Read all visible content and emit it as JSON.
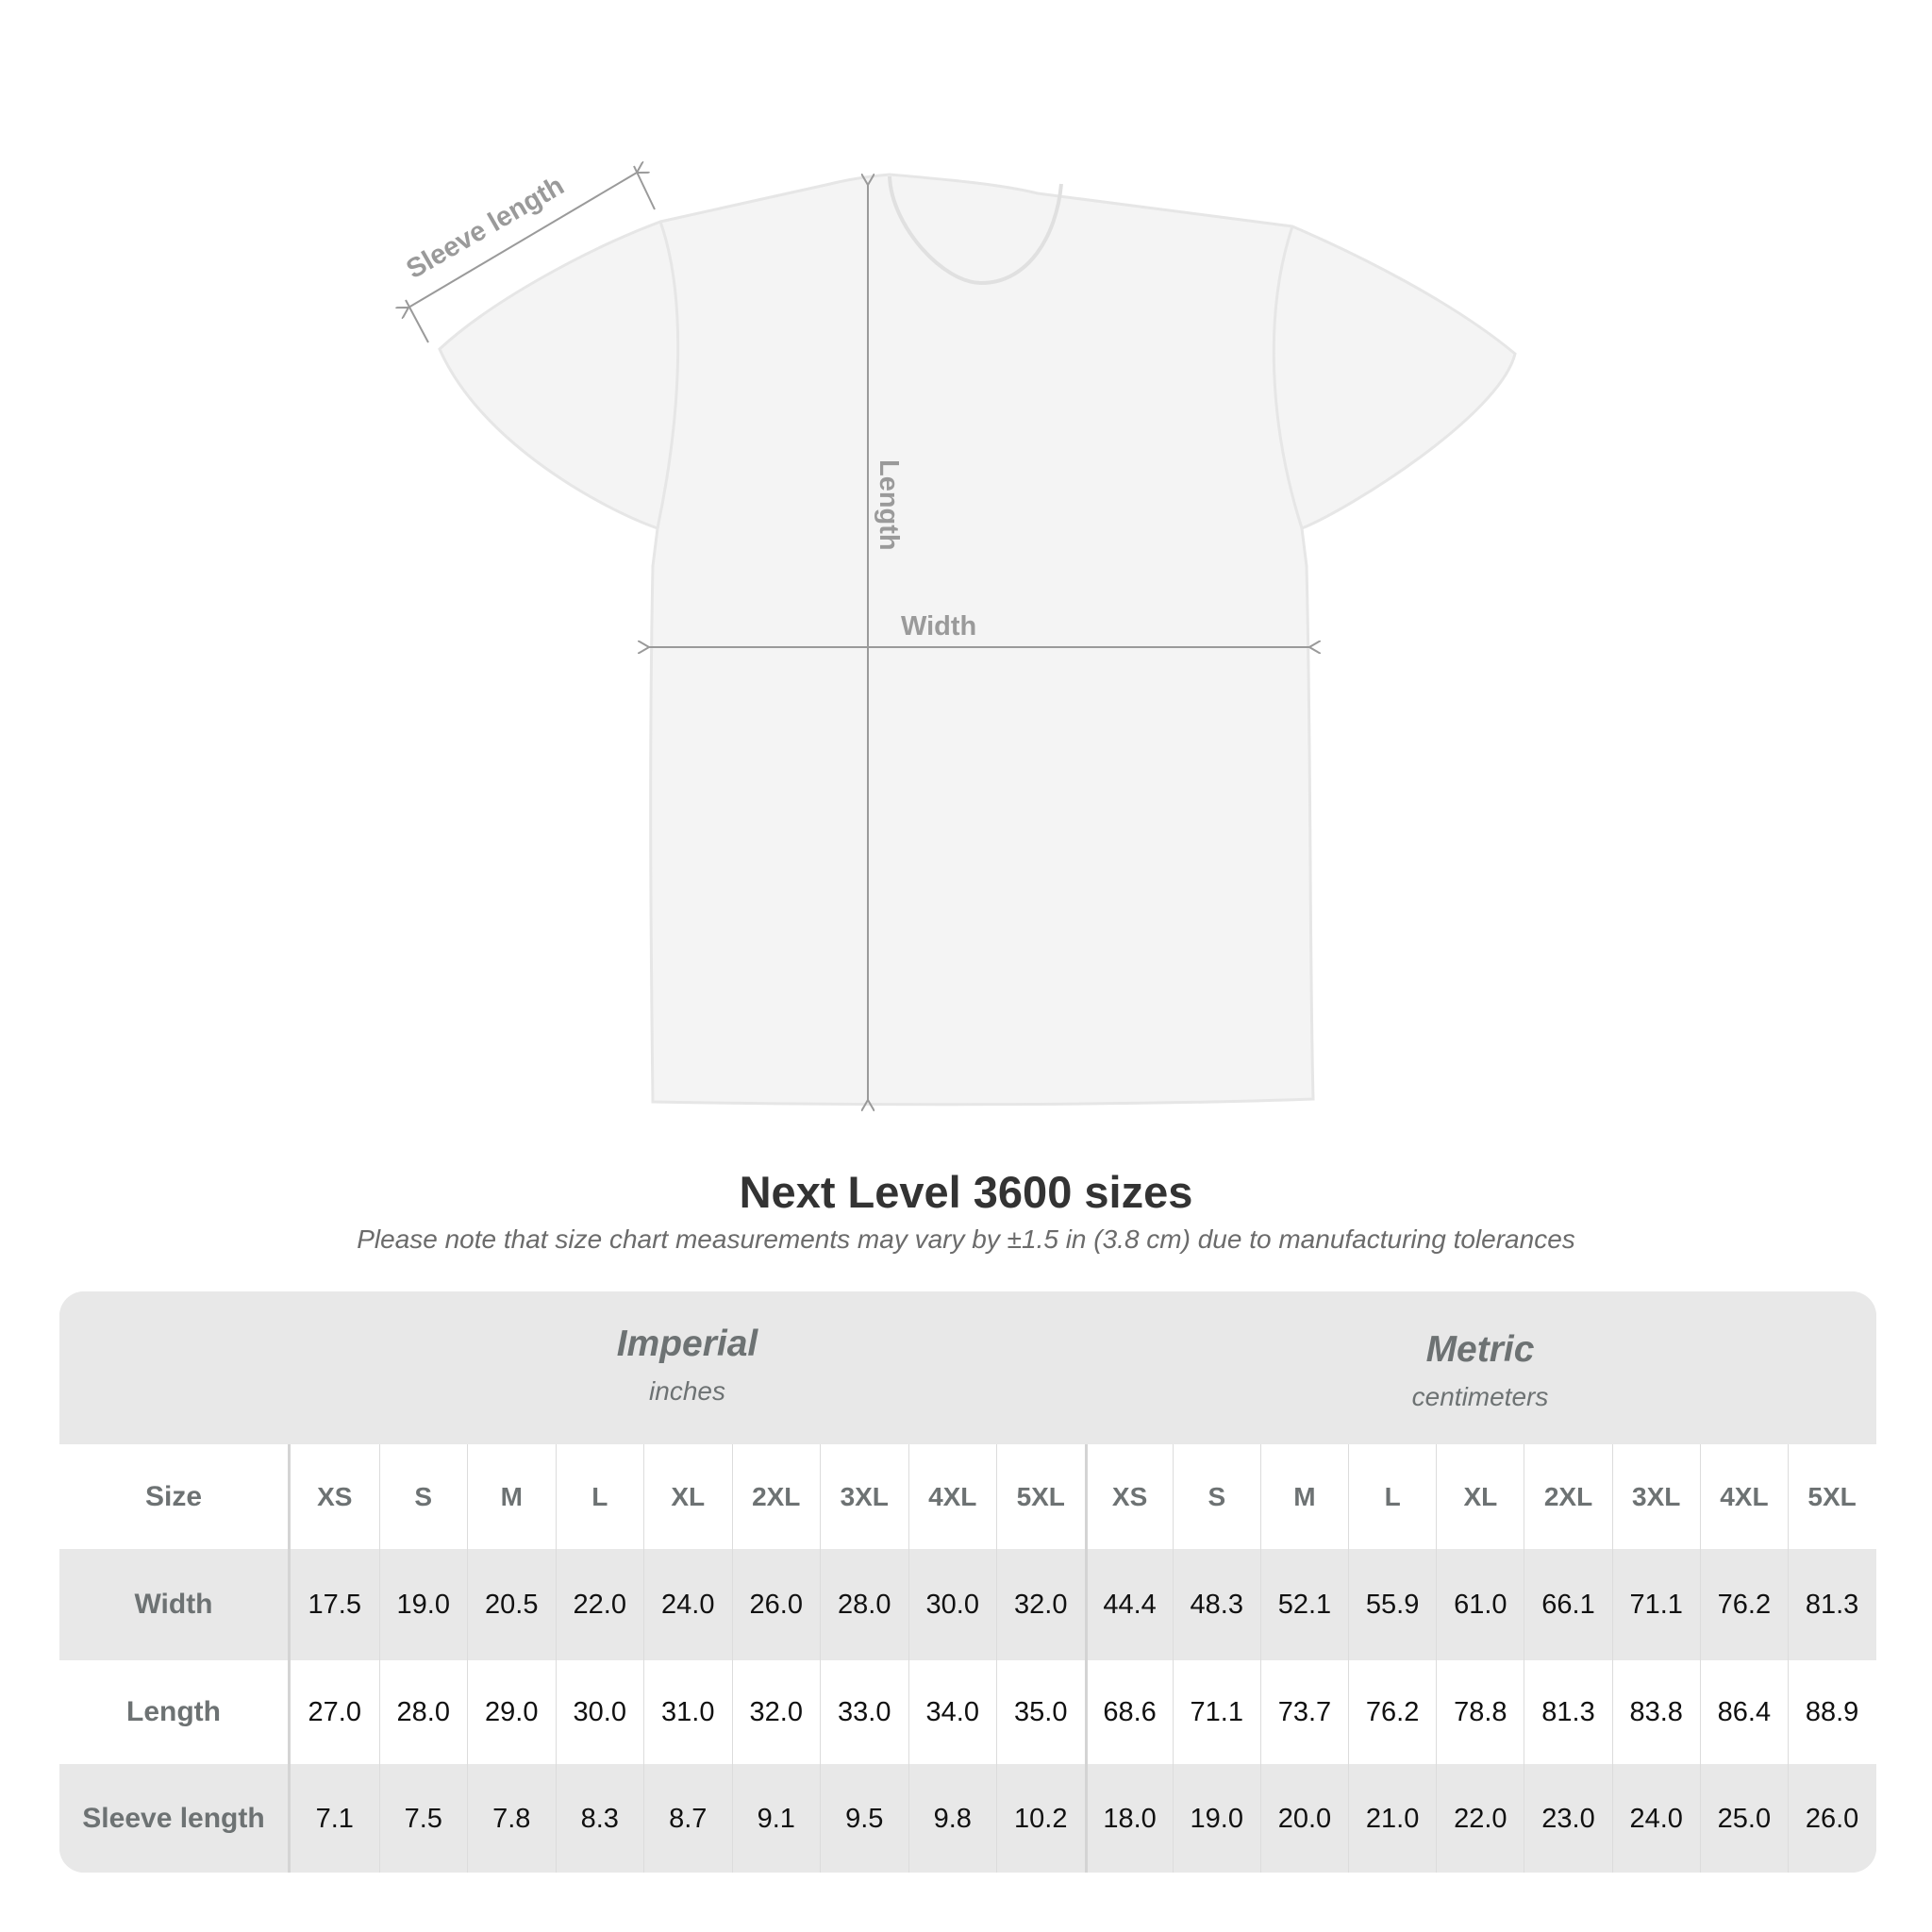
{
  "diagram": {
    "labels": {
      "sleeve": "Sleeve length",
      "length": "Length",
      "width": "Width"
    }
  },
  "title": "Next Level 3600 sizes",
  "subtitle": "Please note that size chart measurements may vary by ±1.5 in (3.8 cm) due to manufacturing tolerances",
  "table": {
    "imperial": {
      "name": "Imperial",
      "unit": "inches"
    },
    "metric": {
      "name": "Metric",
      "unit": "centimeters"
    },
    "size_label": "Size",
    "sizes": [
      "XS",
      "S",
      "M",
      "L",
      "XL",
      "2XL",
      "3XL",
      "4XL",
      "5XL"
    ],
    "rows": [
      {
        "label": "Width",
        "imperial": [
          "17.5",
          "19.0",
          "20.5",
          "22.0",
          "24.0",
          "26.0",
          "28.0",
          "30.0",
          "32.0"
        ],
        "metric": [
          "44.4",
          "48.3",
          "52.1",
          "55.9",
          "61.0",
          "66.1",
          "71.1",
          "76.2",
          "81.3"
        ]
      },
      {
        "label": "Length",
        "imperial": [
          "27.0",
          "28.0",
          "29.0",
          "30.0",
          "31.0",
          "32.0",
          "33.0",
          "34.0",
          "35.0"
        ],
        "metric": [
          "68.6",
          "71.1",
          "73.7",
          "76.2",
          "78.8",
          "81.3",
          "83.8",
          "86.4",
          "88.9"
        ]
      },
      {
        "label": "Sleeve length",
        "imperial": [
          "7.1",
          "7.5",
          "7.8",
          "8.3",
          "8.7",
          "9.1",
          "9.5",
          "9.8",
          "10.2"
        ],
        "metric": [
          "18.0",
          "19.0",
          "20.0",
          "21.0",
          "22.0",
          "23.0",
          "24.0",
          "25.0",
          "26.0"
        ]
      }
    ]
  }
}
